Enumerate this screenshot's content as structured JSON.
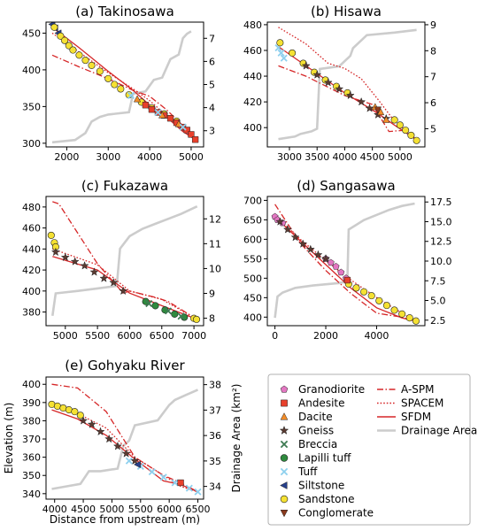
{
  "figure": {
    "ylabel_left": "Elevation (m)",
    "ylabel_right": "Drainage Area (km²)",
    "xlabel": "Distance from upstream (m)"
  },
  "legend": {
    "placement": "bottom-right",
    "lithology": [
      {
        "label": "Granodiorite",
        "marker": "pentagon",
        "color": "#e377c2"
      },
      {
        "label": "Andesite",
        "marker": "square",
        "color": "#e8402c"
      },
      {
        "label": "Dacite",
        "marker": "triangle-up",
        "color": "#f28c28"
      },
      {
        "label": "Gneiss",
        "marker": "star",
        "color": "#5a3b32"
      },
      {
        "label": "Breccia",
        "marker": "x",
        "color": "#3d7a52"
      },
      {
        "label": "Lapilli tuff",
        "marker": "circle",
        "color": "#2f8a3e"
      },
      {
        "label": "Tuff",
        "marker": "x",
        "color": "#8ed0ee"
      },
      {
        "label": "Siltstone",
        "marker": "triangle-left",
        "color": "#27408b"
      },
      {
        "label": "Sandstone",
        "marker": "circle",
        "color": "#f5e133"
      },
      {
        "label": "Conglomerate",
        "marker": "triangle-down",
        "color": "#8b3a1e"
      }
    ],
    "models": [
      {
        "label": "A-SPM",
        "style": "dashdot",
        "color": "#d62728"
      },
      {
        "label": "SPACEM",
        "style": "dotted",
        "color": "#d62728"
      },
      {
        "label": "SFDM",
        "style": "solid",
        "color": "#d62728"
      },
      {
        "label": "Drainage Area",
        "style": "solid",
        "color": "#cccccc"
      }
    ]
  },
  "chart_data": [
    {
      "type": "line",
      "title": "(a) Takinosawa",
      "xlim": [
        1500,
        5300
      ],
      "xticks": [
        2000,
        3000,
        4000,
        5000
      ],
      "ylim": [
        295,
        465
      ],
      "yticks": [
        300,
        350,
        400,
        450
      ],
      "y2lim": [
        2.3,
        7.7
      ],
      "y2ticks": [
        3,
        4,
        5,
        6,
        7
      ],
      "observed": [
        {
          "lithology": "Siltstone",
          "x": [
            1650,
            1720,
            1800
          ],
          "y": [
            462,
            457,
            450
          ]
        },
        {
          "lithology": "Sandstone",
          "x": [
            1700,
            1850,
            1950,
            2050,
            2150,
            2300,
            2450,
            2600,
            2800,
            3000,
            3150,
            3300,
            3500,
            3800,
            4050,
            4350,
            4650
          ],
          "y": [
            458,
            446,
            440,
            433,
            427,
            420,
            413,
            406,
            398,
            388,
            380,
            374,
            366,
            356,
            348,
            340,
            330
          ]
        },
        {
          "lithology": "Andesite",
          "x": [
            3900,
            4050,
            4200,
            4350,
            4500,
            4650,
            4800,
            4900,
            5000,
            5100
          ],
          "y": [
            352,
            346,
            342,
            338,
            334,
            328,
            322,
            318,
            312,
            305
          ]
        },
        {
          "lithology": "Dacite",
          "x": [
            3700,
            4300,
            4700
          ],
          "y": [
            360,
            338,
            326
          ]
        },
        {
          "lithology": "Tuff",
          "x": [
            3550,
            4200,
            4800
          ],
          "y": [
            365,
            342,
            322
          ]
        }
      ],
      "a_spm": {
        "x": [
          1650,
          2300,
          3000,
          3600,
          4000,
          4400,
          4800,
          5100
        ],
        "y": [
          420,
          404,
          388,
          372,
          364,
          346,
          324,
          305
        ]
      },
      "spacem": {
        "x": [
          1650,
          2300,
          3000,
          3600,
          4000,
          4400,
          4800,
          5100
        ],
        "y": [
          450,
          424,
          396,
          374,
          358,
          338,
          318,
          305
        ]
      },
      "sfdm": {
        "x": [
          1650,
          2300,
          3000,
          3600,
          4000,
          4400,
          4800,
          5100
        ],
        "y": [
          458,
          430,
          398,
          372,
          352,
          336,
          316,
          305
        ]
      },
      "drainage": {
        "x": [
          1650,
          2200,
          2450,
          2600,
          2800,
          3000,
          3500,
          3600,
          3900,
          4100,
          4300,
          4500,
          4700,
          4800,
          4900,
          5000
        ],
        "y": [
          2.5,
          2.6,
          2.9,
          3.4,
          3.6,
          3.7,
          3.8,
          4.6,
          4.7,
          5.2,
          5.3,
          6.1,
          6.3,
          7.0,
          7.2,
          7.3
        ]
      }
    },
    {
      "type": "line",
      "title": "(b) Hisawa",
      "xlim": [
        2600,
        5450
      ],
      "xticks": [
        3000,
        3500,
        4000,
        4500,
        5000
      ],
      "ylim": [
        385,
        482
      ],
      "yticks": [
        400,
        420,
        440,
        460,
        480
      ],
      "y2lim": [
        4.3,
        9.1
      ],
      "y2ticks": [
        5,
        6,
        7,
        8,
        9
      ],
      "observed": [
        {
          "lithology": "Tuff",
          "x": [
            2800,
            2850,
            2900
          ],
          "y": [
            462,
            458,
            454
          ]
        },
        {
          "lithology": "Sandstone",
          "x": [
            2830,
            3050,
            3250,
            3450,
            3650,
            3850,
            4050,
            4900,
            5000,
            5100,
            5200,
            5300
          ],
          "y": [
            466,
            458,
            450,
            443,
            437,
            432,
            427,
            406,
            402,
            398,
            394,
            390
          ]
        },
        {
          "lithology": "Gneiss",
          "x": [
            3300,
            3500,
            3700,
            3900,
            4100,
            4300,
            4450,
            4600,
            4750
          ],
          "y": [
            448,
            441,
            435,
            430,
            425,
            420,
            415,
            410,
            407
          ]
        },
        {
          "lithology": "Dacite",
          "x": [
            4550,
            4650,
            4750
          ],
          "y": [
            416,
            412,
            406
          ]
        },
        {
          "lithology": "Conglomerate",
          "x": [
            4600
          ],
          "y": [
            414
          ]
        }
      ],
      "a_spm": {
        "x": [
          2800,
          3300,
          4000,
          4500,
          4800,
          5100,
          5350
        ],
        "y": [
          448,
          440,
          425,
          418,
          397,
          398,
          389
        ]
      },
      "spacem": {
        "x": [
          2800,
          3300,
          3700,
          4000,
          4300,
          4600,
          4900,
          5350
        ],
        "y": [
          478,
          465,
          450,
          446,
          438,
          422,
          405,
          389
        ]
      },
      "sfdm": {
        "x": [
          2800,
          3300,
          3700,
          4000,
          4300,
          4600,
          4900,
          5350
        ],
        "y": [
          463,
          448,
          436,
          427,
          419,
          411,
          402,
          389
        ]
      },
      "drainage": {
        "x": [
          2800,
          3100,
          3200,
          3400,
          3500,
          3550,
          3900,
          4000,
          4100,
          4150,
          4300,
          4400,
          4900,
          5300
        ],
        "y": [
          4.6,
          4.7,
          4.8,
          4.9,
          5.0,
          7.3,
          7.4,
          7.6,
          7.8,
          8.1,
          8.4,
          8.6,
          8.7,
          8.8
        ]
      }
    },
    {
      "type": "line",
      "title": "(c) Fukazawa",
      "xlim": [
        4700,
        7150
      ],
      "xticks": [
        5000,
        5500,
        6000,
        6500,
        7000
      ],
      "ylim": [
        367,
        490
      ],
      "yticks": [
        380,
        400,
        420,
        440,
        460,
        480
      ],
      "y2lim": [
        7.7,
        12.9
      ],
      "y2ticks": [
        8,
        9,
        10,
        11,
        12
      ],
      "observed": [
        {
          "lithology": "Sandstone",
          "x": [
            4780,
            4830,
            4850,
            7000,
            7040
          ],
          "y": [
            453,
            446,
            442,
            374,
            373
          ]
        },
        {
          "lithology": "Gneiss",
          "x": [
            4850,
            5000,
            5150,
            5300,
            5450,
            5600,
            5750,
            5900
          ],
          "y": [
            437,
            432,
            428,
            424,
            418,
            412,
            408,
            400
          ]
        },
        {
          "lithology": "Lapilli tuff",
          "x": [
            6250,
            6400,
            6550,
            6700,
            6850
          ],
          "y": [
            390,
            386,
            382,
            378,
            375
          ]
        },
        {
          "lithology": "Breccia",
          "x": [
            6300,
            6600,
            6800
          ],
          "y": [
            388,
            381,
            376
          ]
        }
      ],
      "a_spm": {
        "x": [
          4800,
          4900,
          5500,
          5900,
          6000,
          6400,
          6600,
          7050
        ],
        "y": [
          485,
          483,
          426,
          398,
          400,
          394,
          390,
          373
        ]
      },
      "spacem": {
        "x": [
          4800,
          5500,
          6000,
          6500,
          7050
        ],
        "y": [
          440,
          425,
          400,
          392,
          373
        ]
      },
      "sfdm": {
        "x": [
          4800,
          5500,
          6000,
          6500,
          7050
        ],
        "y": [
          433,
          420,
          398,
          386,
          373
        ]
      },
      "drainage": {
        "x": [
          4800,
          4850,
          5200,
          5500,
          5800,
          5850,
          6000,
          6200,
          6400,
          6600,
          6800,
          7050
        ],
        "y": [
          8.1,
          9.0,
          9.1,
          9.2,
          9.3,
          10.8,
          11.3,
          11.6,
          11.8,
          12.0,
          12.2,
          12.5
        ]
      }
    },
    {
      "type": "line",
      "title": "(d) Sangasawa",
      "xlim": [
        -300,
        5900
      ],
      "xticks": [
        0,
        2000,
        4000
      ],
      "ylim": [
        378,
        710
      ],
      "yticks": [
        400,
        450,
        500,
        550,
        600,
        650,
        700
      ],
      "y2lim": [
        1.8,
        18.2
      ],
      "y2ticks": [
        2.5,
        5.0,
        7.5,
        10.0,
        12.5,
        15.0,
        17.5
      ],
      "observed": [
        {
          "lithology": "Granodiorite",
          "x": [
            0,
            100,
            300,
            2000,
            2200,
            2400,
            2600,
            2800
          ],
          "y": [
            658,
            650,
            642,
            550,
            540,
            530,
            515,
            500
          ]
        },
        {
          "lithology": "Gneiss",
          "x": [
            200,
            500,
            800,
            1100,
            1400,
            1700,
            2000
          ],
          "y": [
            645,
            625,
            605,
            588,
            574,
            560,
            550
          ]
        },
        {
          "lithology": "Sandstone",
          "x": [
            2900,
            3200,
            3500,
            3800,
            4100,
            4400,
            4700,
            5000,
            5300,
            5550
          ],
          "y": [
            485,
            475,
            465,
            455,
            442,
            430,
            418,
            408,
            398,
            390
          ]
        },
        {
          "lithology": "Andesite",
          "x": [
            2850
          ],
          "y": [
            495
          ]
        }
      ],
      "a_spm": {
        "x": [
          0,
          1000,
          2000,
          3000,
          4000,
          5000,
          5500
        ],
        "y": [
          690,
          590,
          520,
          460,
          410,
          400,
          390
        ]
      },
      "spacem": {
        "x": [
          0,
          1000,
          2000,
          3000,
          4000,
          5000,
          5500
        ],
        "y": [
          662,
          600,
          545,
          495,
          450,
          410,
          390
        ]
      },
      "sfdm": {
        "x": [
          0,
          1000,
          2000,
          3000,
          4000,
          5000,
          5500
        ],
        "y": [
          658,
          596,
          535,
          474,
          424,
          398,
          390
        ]
      },
      "drainage": {
        "x": [
          0,
          100,
          300,
          800,
          1500,
          2500,
          2850,
          2900,
          3500,
          4500,
          5000,
          5500
        ],
        "y": [
          2.8,
          5.5,
          6.0,
          6.6,
          6.9,
          7.2,
          7.4,
          14.0,
          15.2,
          16.5,
          17.0,
          17.3
        ]
      }
    },
    {
      "type": "line",
      "title": "(e) Gohyaku River",
      "xlim": [
        3850,
        6600
      ],
      "xticks": [
        4000,
        4500,
        5000,
        5500,
        6000,
        6500
      ],
      "ylim": [
        337,
        404
      ],
      "yticks": [
        340,
        350,
        360,
        370,
        380,
        390,
        400
      ],
      "y2lim": [
        33.5,
        38.3
      ],
      "y2ticks": [
        34,
        35,
        36,
        37,
        38
      ],
      "observed": [
        {
          "lithology": "Sandstone",
          "x": [
            3950,
            4050,
            4150,
            4250,
            4350,
            4450
          ],
          "y": [
            389,
            388,
            387,
            386,
            385,
            383
          ]
        },
        {
          "lithology": "Gneiss",
          "x": [
            4500,
            4650,
            4800,
            4950,
            5100,
            5250,
            5400
          ],
          "y": [
            380,
            378,
            374,
            370,
            366,
            362,
            358
          ]
        },
        {
          "lithology": "Tuff",
          "x": [
            5300,
            5500,
            5700,
            5900,
            6100,
            6350,
            6500
          ],
          "y": [
            358,
            355,
            352,
            349,
            346,
            343,
            341
          ]
        },
        {
          "lithology": "Andesite",
          "x": [
            6200
          ],
          "y": [
            346
          ]
        },
        {
          "lithology": "Siltstone",
          "x": [
            5450
          ],
          "y": [
            356
          ]
        }
      ],
      "a_spm": {
        "x": [
          3950,
          4400,
          4900,
          5400,
          5900,
          6200,
          6500
        ],
        "y": [
          400,
          398,
          385,
          360,
          350,
          346,
          341
        ]
      },
      "spacem": {
        "x": [
          3950,
          4400,
          4900,
          5400,
          5900,
          6200,
          6500
        ],
        "y": [
          388,
          384,
          376,
          360,
          350,
          344,
          341
        ]
      },
      "sfdm": {
        "x": [
          3950,
          4400,
          4900,
          5400,
          5900,
          6200,
          6500
        ],
        "y": [
          386,
          381,
          372,
          359,
          347,
          345,
          341
        ]
      },
      "drainage": {
        "x": [
          3950,
          4200,
          4450,
          4600,
          4800,
          5100,
          5200,
          5300,
          5400,
          5800,
          6000,
          6100,
          6300,
          6500
        ],
        "y": [
          33.9,
          34.0,
          34.1,
          34.6,
          34.6,
          34.7,
          35.6,
          35.8,
          36.4,
          36.6,
          37.2,
          37.4,
          37.6,
          37.8
        ]
      }
    }
  ]
}
